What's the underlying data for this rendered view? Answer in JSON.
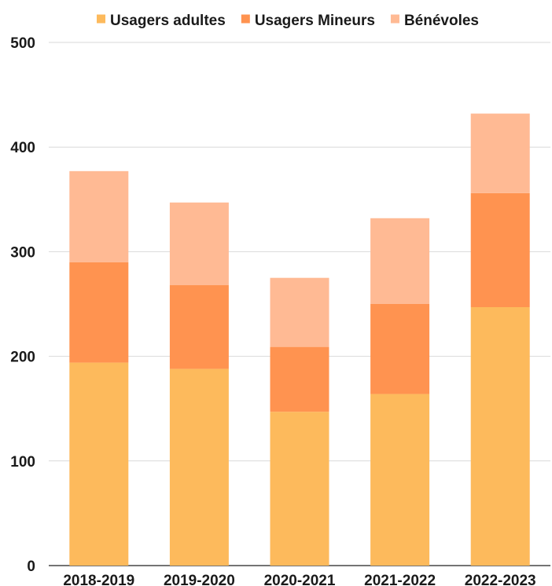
{
  "chart_data": {
    "type": "bar",
    "stacked": true,
    "categories": [
      "2018-2019",
      "2019-2020",
      "2020-2021",
      "2021-2022",
      "2022-2023"
    ],
    "series": [
      {
        "name": "Usagers adultes",
        "color": "#FDBA5C",
        "values": [
          194,
          188,
          147,
          164,
          247
        ]
      },
      {
        "name": "Usagers Mineurs",
        "color": "#FF9350",
        "values": [
          96,
          80,
          62,
          86,
          109
        ]
      },
      {
        "name": "Bénévoles",
        "color": "#FFBA94",
        "values": [
          87,
          79,
          66,
          82,
          76
        ]
      }
    ],
    "ylim": [
      0,
      500
    ],
    "yticks": [
      0,
      100,
      200,
      300,
      400,
      500
    ],
    "grid": true,
    "legend": "top-center"
  }
}
